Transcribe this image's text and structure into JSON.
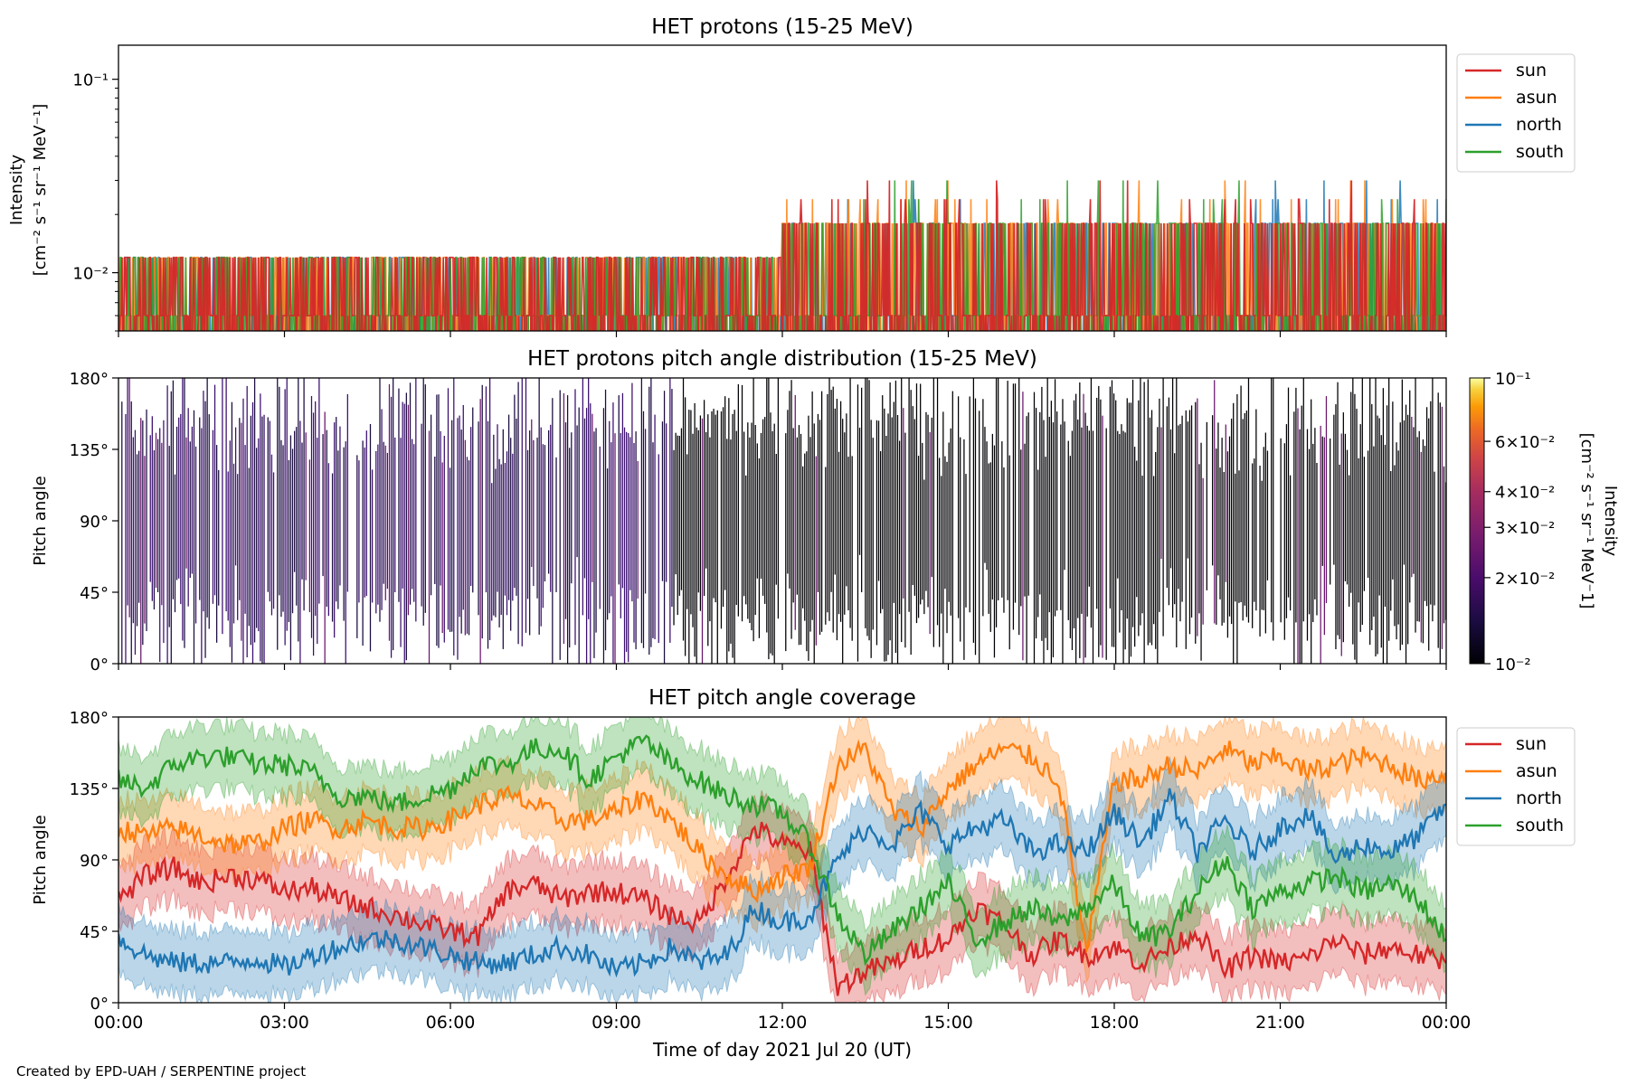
{
  "chart_data": [
    {
      "type": "line",
      "title": "HET protons (15-25 MeV)",
      "ylabel_line1": "Intensity",
      "ylabel_line2": "[cm⁻² s⁻¹ sr⁻¹ MeV⁻¹]",
      "yscale": "log",
      "ylim": [
        0.005,
        0.15
      ],
      "yticks": [
        {
          "value": 0.1,
          "label": "10⁻¹"
        },
        {
          "value": 0.01,
          "label": "10⁻²"
        }
      ],
      "xlim": [
        0,
        24
      ],
      "levels": [
        0.006,
        0.012,
        0.018,
        0.024,
        0.03,
        0.036,
        0.042,
        0.048
      ],
      "legend_position": "outside-right",
      "series": [
        {
          "name": "sun",
          "color": "#d62728"
        },
        {
          "name": "asun",
          "color": "#ff7f0e"
        },
        {
          "name": "north",
          "color": "#1f77b4"
        },
        {
          "name": "south",
          "color": "#2ca02c"
        }
      ]
    },
    {
      "type": "heatmap",
      "title": "HET protons pitch angle distribution (15-25 MeV)",
      "ylabel": "Pitch angle",
      "ylim": [
        0,
        180
      ],
      "yticks": [
        {
          "value": 0,
          "label": "0°"
        },
        {
          "value": 45,
          "label": "45°"
        },
        {
          "value": 90,
          "label": "90°"
        },
        {
          "value": 135,
          "label": "135°"
        },
        {
          "value": 180,
          "label": "180°"
        }
      ],
      "xlim": [
        0,
        24
      ],
      "colorbar": {
        "label_line1": "Intensity",
        "label_line2": "[cm⁻² s⁻¹ sr⁻¹ MeV⁻1]",
        "scale": "log",
        "range": [
          0.01,
          0.1
        ],
        "ticks": [
          {
            "value": 0.1,
            "label": "10⁻¹"
          },
          {
            "value": 0.06,
            "label": "6×10⁻²"
          },
          {
            "value": 0.04,
            "label": "4×10⁻²"
          },
          {
            "value": 0.03,
            "label": "3×10⁻²"
          },
          {
            "value": 0.02,
            "label": "2×10⁻²"
          },
          {
            "value": 0.01,
            "label": "10⁻²"
          }
        ],
        "colormap": "inferno"
      }
    },
    {
      "type": "line",
      "title": "HET pitch angle coverage",
      "ylabel": "Pitch angle",
      "xlabel": "Time of day 2021 Jul 20 (UT)",
      "ylim": [
        0,
        180
      ],
      "yticks": [
        {
          "value": 0,
          "label": "0°"
        },
        {
          "value": 45,
          "label": "45°"
        },
        {
          "value": 90,
          "label": "90°"
        },
        {
          "value": 135,
          "label": "135°"
        },
        {
          "value": 180,
          "label": "180°"
        }
      ],
      "xlim": [
        0,
        24
      ],
      "xticks": [
        {
          "value": 0,
          "label": "00:00"
        },
        {
          "value": 3,
          "label": "03:00"
        },
        {
          "value": 6,
          "label": "06:00"
        },
        {
          "value": 9,
          "label": "09:00"
        },
        {
          "value": 12,
          "label": "12:00"
        },
        {
          "value": 15,
          "label": "15:00"
        },
        {
          "value": 18,
          "label": "18:00"
        },
        {
          "value": 21,
          "label": "21:00"
        },
        {
          "value": 24,
          "label": "00:00"
        }
      ],
      "band_half_width_deg": 20,
      "legend_position": "outside-right",
      "series": [
        {
          "name": "sun",
          "color": "#d62728",
          "x": [
            0,
            0.5,
            1,
            1.5,
            2,
            2.5,
            3,
            3.5,
            4,
            4.5,
            5,
            5.5,
            6,
            6.5,
            7,
            7.5,
            8,
            8.5,
            9,
            9.5,
            10,
            10.5,
            11,
            11.5,
            12,
            12.5,
            13,
            13.5,
            14,
            14.5,
            15,
            15.5,
            16,
            16.5,
            17,
            17.5,
            18,
            18.5,
            19,
            19.5,
            20,
            20.5,
            21,
            21.5,
            22,
            22.5,
            23,
            23.5,
            24
          ],
          "y": [
            65,
            80,
            85,
            75,
            80,
            78,
            70,
            72,
            65,
            60,
            55,
            50,
            45,
            42,
            70,
            75,
            65,
            70,
            70,
            65,
            55,
            50,
            80,
            110,
            100,
            95,
            10,
            20,
            25,
            35,
            40,
            60,
            50,
            30,
            40,
            30,
            35,
            25,
            35,
            45,
            20,
            30,
            25,
            28,
            40,
            30,
            35,
            30,
            25
          ]
        },
        {
          "name": "asun",
          "color": "#ff7f0e",
          "x": [
            0,
            0.5,
            1,
            1.5,
            2,
            2.5,
            3,
            3.5,
            4,
            4.5,
            5,
            5.5,
            6,
            6.5,
            7,
            7.5,
            8,
            8.5,
            9,
            9.5,
            10,
            10.5,
            11,
            11.5,
            12,
            12.5,
            13,
            13.5,
            14,
            14.5,
            15,
            15.5,
            16,
            16.5,
            17,
            17.5,
            18,
            18.5,
            19,
            19.5,
            20,
            20.5,
            21,
            21.5,
            22,
            22.5,
            23,
            23.5,
            24
          ],
          "y": [
            110,
            105,
            110,
            105,
            100,
            100,
            110,
            115,
            110,
            115,
            110,
            110,
            115,
            125,
            130,
            125,
            115,
            115,
            120,
            130,
            115,
            95,
            80,
            70,
            80,
            85,
            150,
            160,
            120,
            110,
            135,
            150,
            160,
            155,
            140,
            30,
            140,
            140,
            150,
            145,
            160,
            150,
            155,
            145,
            150,
            155,
            150,
            140,
            145
          ]
        },
        {
          "name": "north",
          "color": "#1f77b4",
          "x": [
            0,
            0.5,
            1,
            1.5,
            2,
            2.5,
            3,
            3.5,
            4,
            4.5,
            5,
            5.5,
            6,
            6.5,
            7,
            7.5,
            8,
            8.5,
            9,
            9.5,
            10,
            10.5,
            11,
            11.5,
            12,
            12.5,
            13,
            13.5,
            14,
            14.5,
            15,
            15.5,
            16,
            16.5,
            17,
            17.5,
            18,
            18.5,
            19,
            19.5,
            20,
            20.5,
            21,
            21.5,
            22,
            22.5,
            23,
            23.5,
            24
          ],
          "y": [
            40,
            30,
            25,
            25,
            25,
            28,
            22,
            30,
            35,
            40,
            40,
            35,
            30,
            25,
            25,
            30,
            35,
            30,
            20,
            25,
            35,
            25,
            30,
            60,
            50,
            55,
            90,
            110,
            100,
            120,
            100,
            110,
            115,
            95,
            100,
            95,
            120,
            100,
            130,
            95,
            115,
            95,
            110,
            120,
            90,
            100,
            95,
            105,
            125
          ]
        },
        {
          "name": "south",
          "color": "#2ca02c",
          "x": [
            0,
            0.5,
            1,
            1.5,
            2,
            2.5,
            3,
            3.5,
            4,
            4.5,
            5,
            5.5,
            6,
            6.5,
            7,
            7.5,
            8,
            8.5,
            9,
            9.5,
            10,
            10.5,
            11,
            11.5,
            12,
            12.5,
            13,
            13.5,
            14,
            14.5,
            15,
            15.5,
            16,
            16.5,
            17,
            17.5,
            18,
            18.5,
            19,
            19.5,
            20,
            20.5,
            21,
            21.5,
            22,
            22.5,
            23,
            23.5,
            24
          ],
          "y": [
            140,
            135,
            150,
            155,
            155,
            150,
            150,
            145,
            130,
            130,
            125,
            130,
            135,
            150,
            150,
            160,
            160,
            140,
            155,
            165,
            150,
            140,
            130,
            125,
            120,
            100,
            55,
            30,
            45,
            60,
            75,
            40,
            50,
            60,
            50,
            60,
            75,
            40,
            45,
            70,
            90,
            60,
            70,
            75,
            80,
            70,
            75,
            65,
            40
          ]
        }
      ]
    }
  ],
  "footer": "Created by EPD-UAH / SERPENTINE project"
}
